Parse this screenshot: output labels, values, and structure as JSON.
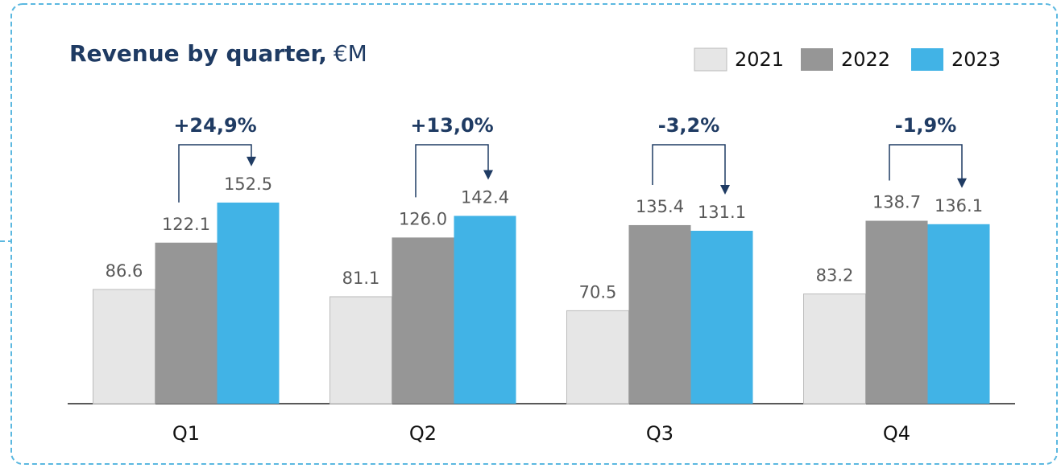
{
  "chart_data": {
    "type": "bar",
    "title": "Revenue by quarter,",
    "title_unit": "€M",
    "categories": [
      "Q1",
      "Q2",
      "Q3",
      "Q4"
    ],
    "series": [
      {
        "name": "2021",
        "color": "#e6e6e6",
        "values": [
          86.6,
          81.1,
          70.5,
          83.2
        ],
        "value_labels": [
          "86.6",
          "81.1",
          "70.5",
          "83.2"
        ]
      },
      {
        "name": "2022",
        "color": "#969696",
        "values": [
          122.1,
          126.0,
          135.4,
          138.7
        ],
        "value_labels": [
          "122.1",
          "126.0",
          "135.4",
          "138.7"
        ]
      },
      {
        "name": "2023",
        "color": "#41b3e6",
        "values": [
          152.5,
          142.4,
          131.1,
          136.1
        ],
        "value_labels": [
          "152.5",
          "142.4",
          "131.1",
          "136.1"
        ]
      }
    ],
    "annotations": [
      "+24,9%",
      "+13,0%",
      "-3,2%",
      "-1,9%"
    ],
    "ylim": [
      0,
      200
    ],
    "legend": "top-right"
  }
}
